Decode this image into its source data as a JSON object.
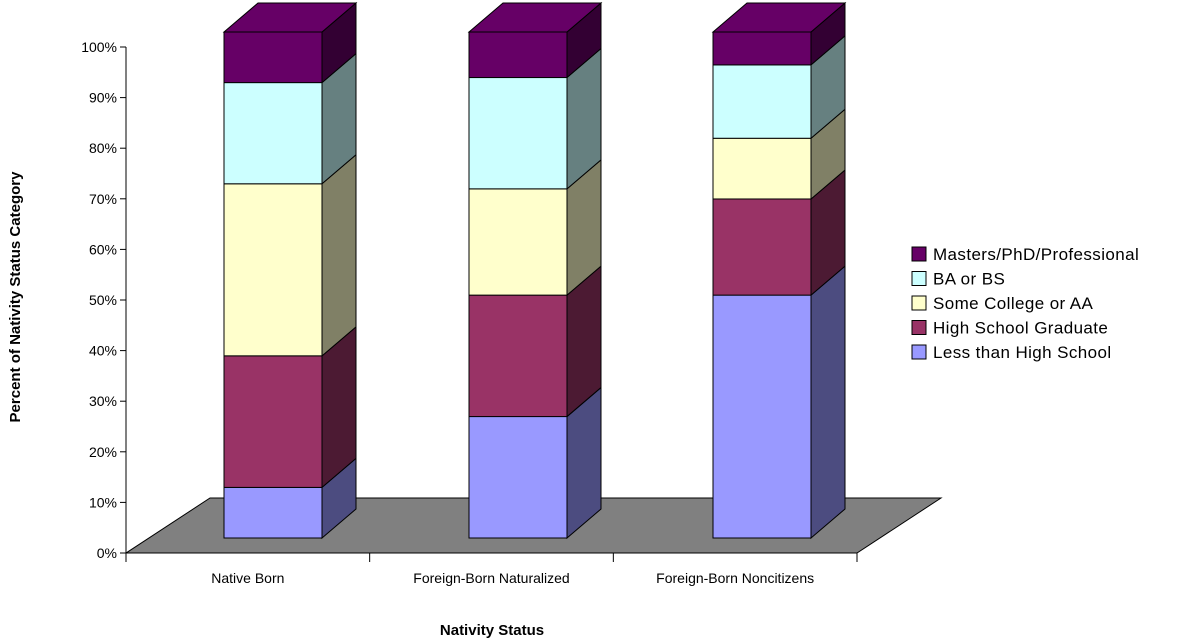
{
  "chart_data": {
    "type": "bar",
    "stacked": true,
    "percent_stacked": true,
    "three_d": true,
    "title": "",
    "xlabel": "Nativity Status",
    "ylabel": "Percent of Nativity Status Category",
    "ylim": [
      0,
      100
    ],
    "y_ticks": [
      "0%",
      "10%",
      "20%",
      "30%",
      "40%",
      "50%",
      "60%",
      "70%",
      "80%",
      "90%",
      "100%"
    ],
    "categories": [
      "Native Born",
      "Foreign-Born Naturalized",
      "Foreign-Born Noncitizens"
    ],
    "series": [
      {
        "name": "Less than High School",
        "color": "#9999ff",
        "side_color": "#4c4c80",
        "values": [
          10,
          24,
          48
        ]
      },
      {
        "name": "High School Graduate",
        "color": "#993366",
        "side_color": "#4c1a33",
        "values": [
          26,
          24,
          19
        ]
      },
      {
        "name": "Some College or AA",
        "color": "#ffffcc",
        "side_color": "#808066",
        "values": [
          34,
          21,
          12
        ]
      },
      {
        "name": "BA or BS",
        "color": "#ccffff",
        "side_color": "#668080",
        "values": [
          20,
          22,
          14.5
        ]
      },
      {
        "name": "Masters/PhD/Professional",
        "color": "#660066",
        "side_color": "#330033",
        "values": [
          10,
          9,
          6.5
        ]
      }
    ],
    "legend_position": "right",
    "grid": false,
    "floor_color": "#808080"
  }
}
